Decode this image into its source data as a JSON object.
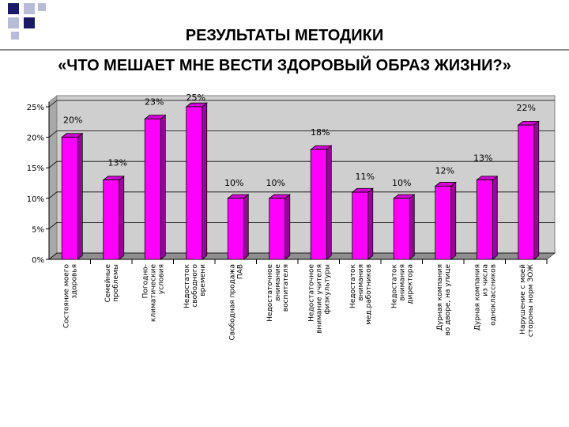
{
  "header": {
    "title_line1": "РЕЗУЛЬТАТЫ МЕТОДИКИ",
    "title_line2": "«ЧТО МЕШАЕТ МНЕ ВЕСТИ ЗДОРОВЫЙ ОБРАЗ ЖИЗНИ?»"
  },
  "colors": {
    "bar_front": "#ff00ff",
    "bar_side": "#9c009c",
    "bar_top": "#d000d0",
    "plot_back": "#cfcfcf",
    "floor": "#8f8f8f",
    "deco_dark": "#1a1a66",
    "deco_light": "#b8bcd6"
  },
  "chart_data": {
    "type": "bar",
    "ylim": [
      0,
      25
    ],
    "yticks": [
      "0%",
      "5%",
      "10%",
      "15%",
      "20%",
      "25%"
    ],
    "categories": [
      [
        "Состояние моего",
        "здоровья"
      ],
      [
        "Семейные",
        "проблемы"
      ],
      [
        "Погодно-",
        "климатические",
        "условия"
      ],
      [
        "Недостаток",
        "свободного",
        "времени"
      ],
      [
        "Свободная продажа",
        "ПАВ"
      ],
      [
        "Недостаточное",
        "внимание",
        "воспитателя"
      ],
      [
        "Недостаточное",
        "внимание учителя",
        "физкультуры"
      ],
      [
        "Недостаток",
        "внимания",
        "мед.работников"
      ],
      [
        "Недостаток",
        "внимания",
        "директора"
      ],
      [
        "Дурная компания",
        "во дворе, на улице"
      ],
      [
        "Дурная компания",
        "из числа",
        "одноклассников"
      ],
      [
        "Нарушение с моей",
        "стороны норм ЗОЖ"
      ]
    ],
    "values": [
      20,
      13,
      23,
      25,
      10,
      10,
      18,
      11,
      10,
      12,
      13,
      22
    ],
    "labels": [
      "20%",
      "13%",
      "23%",
      "25%",
      "10%",
      "10%",
      "18%",
      "11%",
      "10%",
      "12%",
      "13%",
      "22%"
    ],
    "grid": true,
    "legend": "none"
  }
}
